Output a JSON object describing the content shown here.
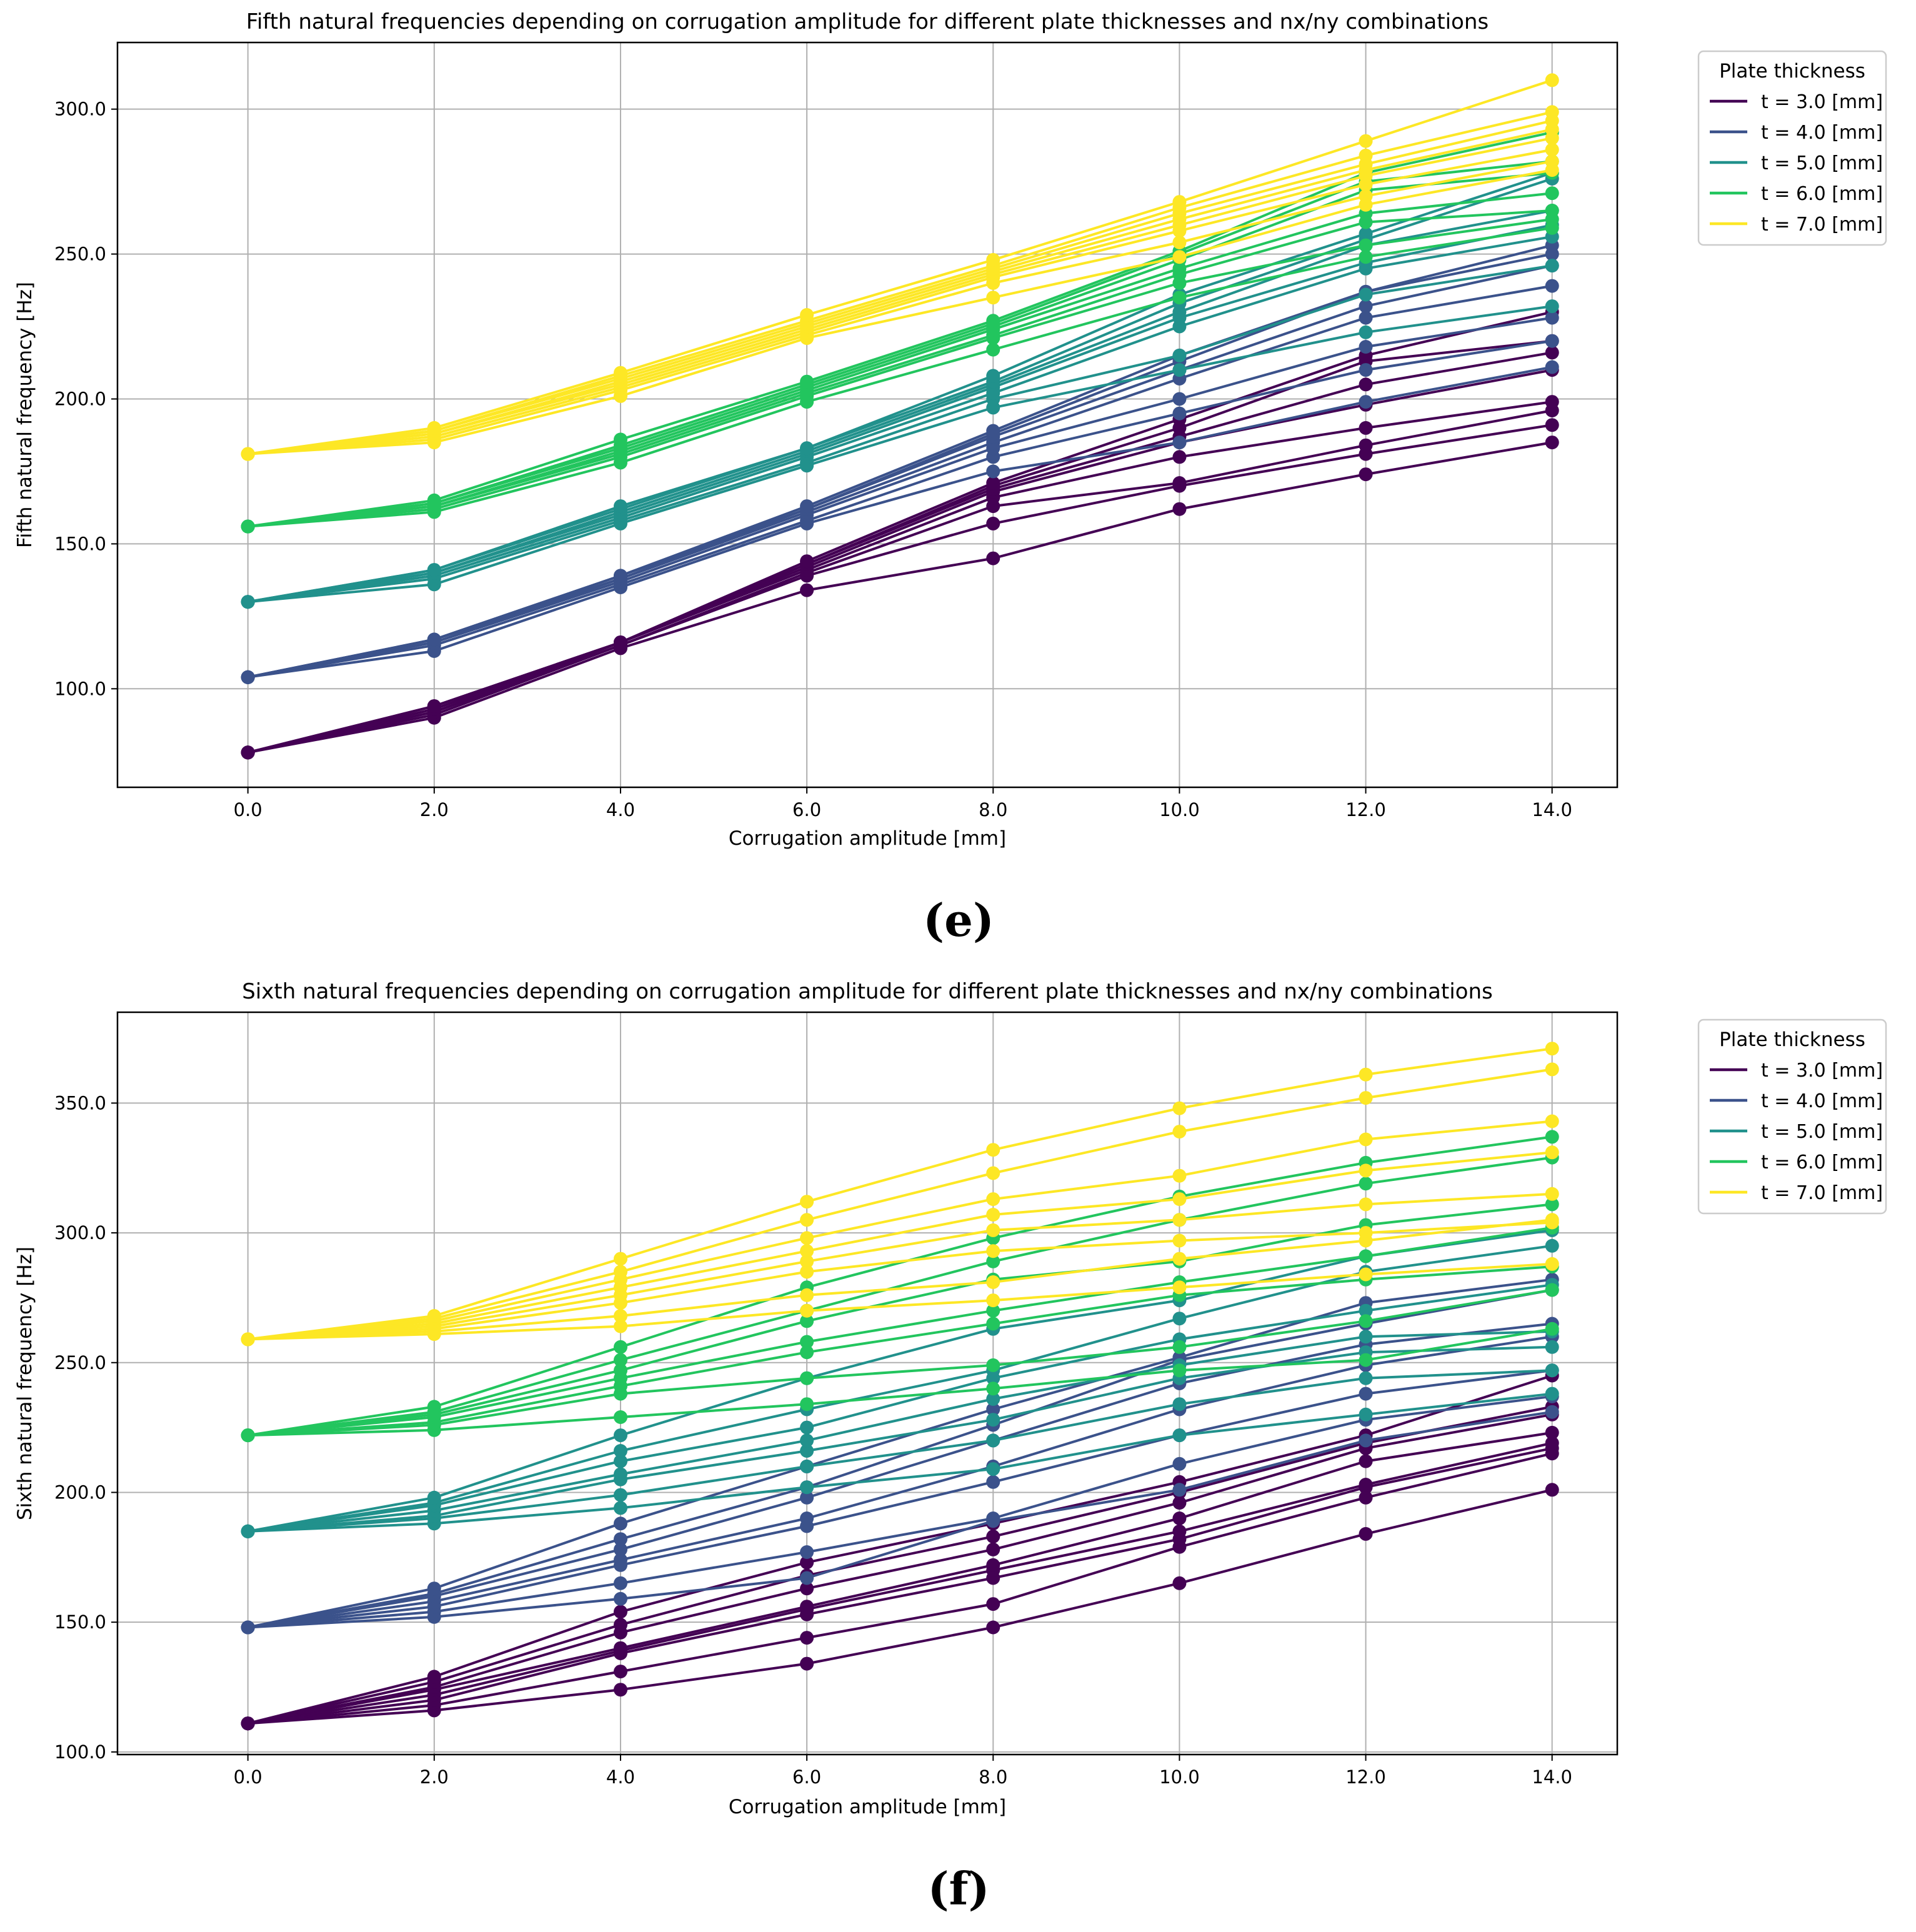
{
  "chart_data": [
    {
      "type": "line",
      "title": "Fifth natural frequencies depending on corrugation amplitude for different plate thicknesses and nx/ny combinations",
      "xlabel": "Corrugation amplitude [mm]",
      "ylabel": "Fifth natural frequency [Hz]",
      "xlim": [
        -1.4,
        14.7
      ],
      "ylim": [
        66,
        323
      ],
      "xticks": [
        0,
        2,
        4,
        6,
        8,
        10,
        12,
        14
      ],
      "yticks": [
        100,
        150,
        200,
        250,
        300
      ],
      "x": [
        0,
        2,
        4,
        6,
        8,
        10,
        12,
        14
      ],
      "grid": true,
      "legend_title": "Plate thickness",
      "legend_position": "outside-top-right",
      "caption": "(e)",
      "series": [
        {
          "name": "t = 3.0 [mm]",
          "color": "#440154",
          "lines": [
            [
              78,
              90,
              114,
              134,
              145,
              162,
              174,
              185
            ],
            [
              78,
              91,
              115,
              139,
              157,
              170,
              181,
              191
            ],
            [
              78,
              92,
              115,
              140,
              163,
              171,
              184,
              196
            ],
            [
              78,
              92,
              116,
              141,
              166,
              180,
              190,
              199
            ],
            [
              78,
              93,
              116,
              142,
              168,
              185,
              198,
              210
            ],
            [
              78,
              93,
              116,
              143,
              169,
              187,
              205,
              216
            ],
            [
              78,
              94,
              116,
              143,
              170,
              190,
              213,
              220
            ],
            [
              78,
              94,
              116,
              144,
              171,
              193,
              215,
              230
            ]
          ]
        },
        {
          "name": "t = 4.0 [mm]",
          "color": "#3b528b",
          "lines": [
            [
              104,
              113,
              135,
              157,
              175,
              185,
              199,
              211
            ],
            [
              104,
              115,
              136,
              158,
              180,
              195,
              210,
              220
            ],
            [
              104,
              116,
              137,
              160,
              183,
              200,
              218,
              228
            ],
            [
              104,
              116,
              138,
              161,
              185,
              207,
              228,
              239
            ],
            [
              104,
              117,
              138,
              162,
              187,
              210,
              232,
              246
            ],
            [
              104,
              117,
              139,
              162,
              188,
              213,
              237,
              250
            ],
            [
              104,
              117,
              139,
              163,
              189,
              215,
              237,
              253
            ]
          ]
        },
        {
          "name": "t = 5.0 [mm]",
          "color": "#21918c",
          "lines": [
            [
              130,
              136,
              157,
              177,
              197,
              210,
              223,
              232
            ],
            [
              130,
              138,
              158,
              178,
              200,
              215,
              236,
              246
            ],
            [
              130,
              139,
              159,
              180,
              202,
              225,
              245,
              256
            ],
            [
              130,
              140,
              160,
              181,
              204,
              228,
              247,
              260
            ],
            [
              130,
              140,
              161,
              182,
              205,
              230,
              253,
              265
            ],
            [
              130,
              141,
              162,
              183,
              206,
              233,
              255,
              276
            ],
            [
              130,
              141,
              163,
              183,
              208,
              236,
              257,
              278
            ]
          ]
        },
        {
          "name": "t = 6.0 [mm]",
          "color": "#22c55e",
          "lines": [
            [
              156,
              161,
              178,
              199,
              217,
              235,
              249,
              259
            ],
            [
              156,
              162,
              180,
              201,
              221,
              240,
              253,
              262
            ],
            [
              156,
              163,
              181,
              202,
              222,
              243,
              261,
              265
            ],
            [
              156,
              163,
              182,
              203,
              224,
              245,
              264,
              271
            ],
            [
              156,
              164,
              183,
              204,
              225,
              248,
              272,
              278
            ],
            [
              156,
              164,
              184,
              205,
              226,
              250,
              275,
              282
            ],
            [
              156,
              165,
              186,
              206,
              227,
              251,
              278,
              292
            ]
          ]
        },
        {
          "name": "t = 7.0 [mm]",
          "color": "#fde725",
          "lines": [
            [
              181,
              185,
              201,
              221,
              235,
              249,
              267,
              279
            ],
            [
              181,
              186,
              203,
              222,
              240,
              254,
              270,
              282
            ],
            [
              181,
              187,
              204,
              223,
              242,
              258,
              274,
              286
            ],
            [
              181,
              188,
              205,
              224,
              243,
              260,
              277,
              290
            ],
            [
              181,
              188,
              206,
              225,
              244,
              262,
              279,
              293
            ],
            [
              181,
              189,
              207,
              226,
              245,
              264,
              281,
              296
            ],
            [
              181,
              189,
              208,
              227,
              246,
              266,
              284,
              299
            ],
            [
              181,
              190,
              209,
              229,
              248,
              268,
              289,
              310
            ]
          ]
        }
      ]
    },
    {
      "type": "line",
      "title": "Sixth natural frequencies depending on corrugation amplitude for different plate thicknesses and nx/ny combinations",
      "xlabel": "Corrugation amplitude [mm]",
      "ylabel": "Sixth natural frequency [Hz]",
      "xlim": [
        -1.4,
        14.7
      ],
      "ylim": [
        99,
        385
      ],
      "xticks": [
        0,
        2,
        4,
        6,
        8,
        10,
        12,
        14
      ],
      "yticks": [
        100,
        150,
        200,
        250,
        300,
        350
      ],
      "x": [
        0,
        2,
        4,
        6,
        8,
        10,
        12,
        14
      ],
      "grid": true,
      "legend_title": "Plate thickness",
      "legend_position": "outside-top-right",
      "caption": "(f)",
      "series": [
        {
          "name": "t = 3.0 [mm]",
          "color": "#440154",
          "lines": [
            [
              111,
              116,
              124,
              134,
              148,
              165,
              184,
              201
            ],
            [
              111,
              118,
              131,
              144,
              157,
              179,
              198,
              215
            ],
            [
              111,
              120,
              138,
              153,
              167,
              182,
              202,
              217
            ],
            [
              111,
              122,
              139,
              155,
              170,
              185,
              203,
              219
            ],
            [
              111,
              124,
              140,
              156,
              172,
              190,
              212,
              223
            ],
            [
              111,
              125,
              146,
              163,
              178,
              196,
              217,
              230
            ],
            [
              111,
              127,
              149,
              168,
              183,
              200,
              219,
              233
            ],
            [
              111,
              129,
              154,
              173,
              188,
              204,
              222,
              245
            ]
          ]
        },
        {
          "name": "t = 4.0 [mm]",
          "color": "#3b528b",
          "lines": [
            [
              148,
              152,
              159,
              167,
              189,
              201,
              220,
              231
            ],
            [
              148,
              154,
              165,
              177,
              190,
              211,
              228,
              237
            ],
            [
              148,
              156,
              172,
              187,
              204,
              222,
              238,
              247
            ],
            [
              148,
              158,
              174,
              190,
              210,
              232,
              249,
              260
            ],
            [
              148,
              160,
              178,
              198,
              220,
              242,
              257,
              265
            ],
            [
              148,
              161,
              182,
              202,
              226,
              251,
              265,
              278
            ],
            [
              148,
              163,
              188,
              210,
              232,
              252,
              273,
              282
            ]
          ]
        },
        {
          "name": "t = 5.0 [mm]",
          "color": "#21918c",
          "lines": [
            [
              185,
              188,
              194,
              202,
              209,
              222,
              230,
              238
            ],
            [
              185,
              190,
              199,
              210,
              220,
              234,
              244,
              247
            ],
            [
              185,
              191,
              205,
              216,
              228,
              244,
              254,
              256
            ],
            [
              185,
              193,
              207,
              220,
              236,
              249,
              260,
              262
            ],
            [
              185,
              195,
              212,
              225,
              244,
              259,
              270,
              280
            ],
            [
              185,
              196,
              216,
              232,
              247,
              267,
              285,
              295
            ],
            [
              185,
              198,
              222,
              244,
              263,
              274,
              291,
              301
            ]
          ]
        },
        {
          "name": "t = 6.0 [mm]",
          "color": "#22c55e",
          "lines": [
            [
              222,
              224,
              229,
              234,
              240,
              247,
              251,
              263
            ],
            [
              222,
              226,
              238,
              244,
              249,
              256,
              266,
              278
            ],
            [
              222,
              227,
              241,
              254,
              265,
              276,
              282,
              287
            ],
            [
              222,
              229,
              244,
              258,
              270,
              281,
              291,
              302
            ],
            [
              222,
              230,
              247,
              266,
              282,
              289,
              303,
              311
            ],
            [
              222,
              231,
              251,
              270,
              289,
              305,
              319,
              329
            ],
            [
              222,
              233,
              256,
              279,
              298,
              314,
              327,
              337
            ]
          ]
        },
        {
          "name": "t = 7.0 [mm]",
          "color": "#fde725",
          "lines": [
            [
              259,
              261,
              264,
              270,
              274,
              279,
              284,
              288
            ],
            [
              259,
              262,
              268,
              276,
              281,
              290,
              297,
              305
            ],
            [
              259,
              263,
              273,
              285,
              293,
              297,
              300,
              304
            ],
            [
              259,
              264,
              276,
              289,
              301,
              305,
              311,
              315
            ],
            [
              259,
              265,
              279,
              293,
              307,
              313,
              324,
              331
            ],
            [
              259,
              266,
              282,
              298,
              313,
              322,
              336,
              343
            ],
            [
              259,
              267,
              285,
              305,
              323,
              339,
              352,
              363
            ],
            [
              259,
              268,
              290,
              312,
              332,
              348,
              361,
              371
            ]
          ]
        }
      ]
    }
  ]
}
